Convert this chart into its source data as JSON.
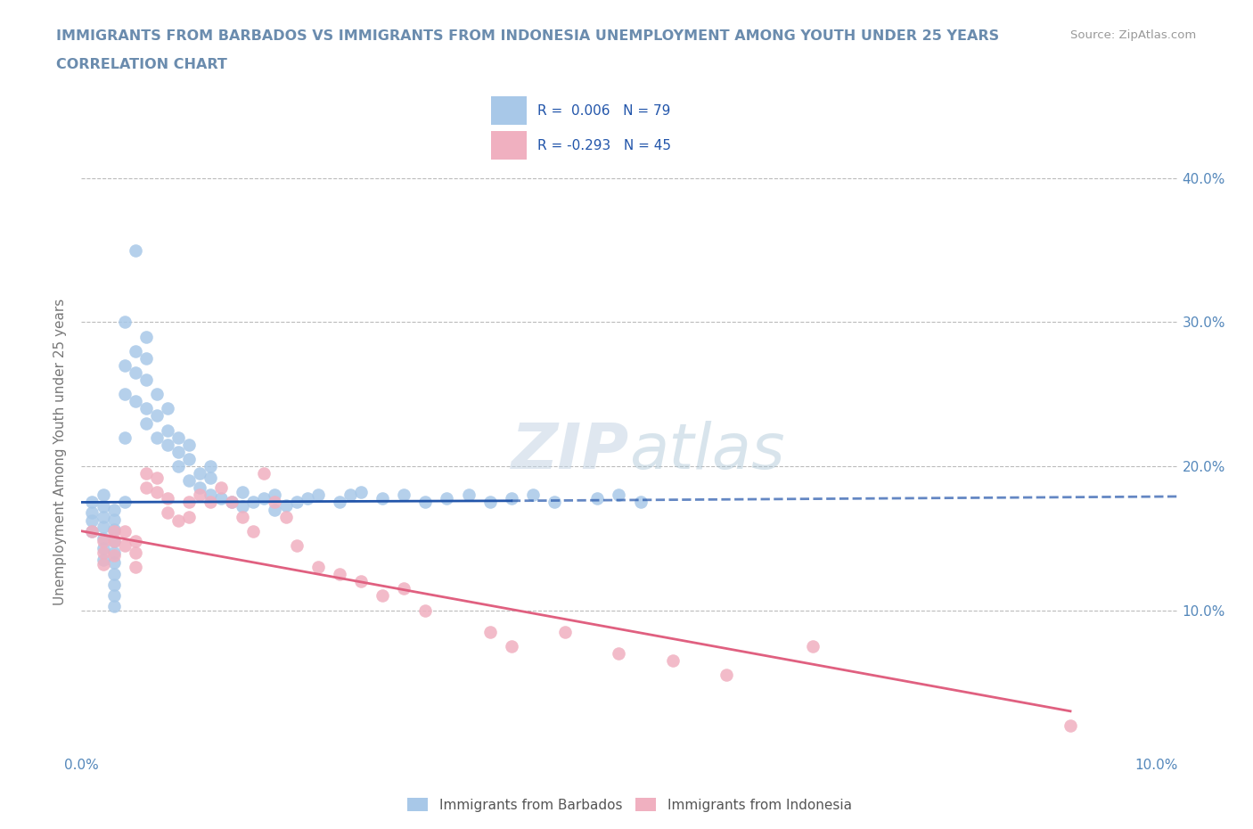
{
  "title_line1": "IMMIGRANTS FROM BARBADOS VS IMMIGRANTS FROM INDONESIA UNEMPLOYMENT AMONG YOUTH UNDER 25 YEARS",
  "title_line2": "CORRELATION CHART",
  "title_color": "#6b8cae",
  "source_text": "Source: ZipAtlas.com",
  "ylabel": "Unemployment Among Youth under 25 years",
  "xlim": [
    0.0,
    0.102
  ],
  "ylim": [
    0.0,
    0.42
  ],
  "grid_color": "#bbbbbb",
  "background_color": "#ffffff",
  "barbados_color": "#a8c8e8",
  "indonesia_color": "#f0b0c0",
  "trendline_barbados_color": "#2255aa",
  "trendline_indonesia_color": "#e06080",
  "legend_r_b": "R =  0.006",
  "legend_n_b": "N = 79",
  "legend_r_i": "R = -0.293",
  "legend_n_i": "N = 45",
  "legend_text_color": "#2255aa",
  "tick_color": "#5588bb",
  "barbados_x": [
    0.001,
    0.001,
    0.001,
    0.001,
    0.002,
    0.002,
    0.002,
    0.002,
    0.002,
    0.002,
    0.002,
    0.003,
    0.003,
    0.003,
    0.003,
    0.003,
    0.003,
    0.003,
    0.003,
    0.003,
    0.003,
    0.004,
    0.004,
    0.004,
    0.004,
    0.004,
    0.005,
    0.005,
    0.005,
    0.005,
    0.006,
    0.006,
    0.006,
    0.006,
    0.006,
    0.007,
    0.007,
    0.007,
    0.008,
    0.008,
    0.008,
    0.009,
    0.009,
    0.009,
    0.01,
    0.01,
    0.01,
    0.011,
    0.011,
    0.012,
    0.012,
    0.012,
    0.013,
    0.014,
    0.015,
    0.015,
    0.016,
    0.017,
    0.018,
    0.018,
    0.019,
    0.02,
    0.021,
    0.022,
    0.024,
    0.025,
    0.026,
    0.028,
    0.03,
    0.032,
    0.034,
    0.036,
    0.038,
    0.04,
    0.042,
    0.044,
    0.048,
    0.05,
    0.052
  ],
  "barbados_y": [
    0.175,
    0.168,
    0.162,
    0.155,
    0.18,
    0.172,
    0.165,
    0.158,
    0.15,
    0.143,
    0.135,
    0.17,
    0.163,
    0.156,
    0.148,
    0.14,
    0.133,
    0.125,
    0.118,
    0.11,
    0.103,
    0.175,
    0.22,
    0.25,
    0.27,
    0.3,
    0.245,
    0.265,
    0.28,
    0.35,
    0.23,
    0.24,
    0.26,
    0.275,
    0.29,
    0.22,
    0.235,
    0.25,
    0.215,
    0.225,
    0.24,
    0.2,
    0.21,
    0.22,
    0.19,
    0.205,
    0.215,
    0.185,
    0.195,
    0.18,
    0.192,
    0.2,
    0.178,
    0.175,
    0.172,
    0.182,
    0.175,
    0.178,
    0.17,
    0.18,
    0.173,
    0.175,
    0.178,
    0.18,
    0.175,
    0.18,
    0.182,
    0.178,
    0.18,
    0.175,
    0.178,
    0.18,
    0.175,
    0.178,
    0.18,
    0.175,
    0.178,
    0.18,
    0.175
  ],
  "indonesia_x": [
    0.001,
    0.002,
    0.002,
    0.002,
    0.003,
    0.003,
    0.003,
    0.004,
    0.004,
    0.005,
    0.005,
    0.005,
    0.006,
    0.006,
    0.007,
    0.007,
    0.008,
    0.008,
    0.009,
    0.01,
    0.01,
    0.011,
    0.012,
    0.013,
    0.014,
    0.015,
    0.016,
    0.017,
    0.018,
    0.019,
    0.02,
    0.022,
    0.024,
    0.026,
    0.028,
    0.03,
    0.032,
    0.038,
    0.04,
    0.045,
    0.05,
    0.055,
    0.06,
    0.068,
    0.092
  ],
  "indonesia_y": [
    0.155,
    0.148,
    0.14,
    0.132,
    0.155,
    0.148,
    0.138,
    0.155,
    0.145,
    0.148,
    0.14,
    0.13,
    0.195,
    0.185,
    0.192,
    0.182,
    0.178,
    0.168,
    0.162,
    0.175,
    0.165,
    0.18,
    0.175,
    0.185,
    0.175,
    0.165,
    0.155,
    0.195,
    0.175,
    0.165,
    0.145,
    0.13,
    0.125,
    0.12,
    0.11,
    0.115,
    0.1,
    0.085,
    0.075,
    0.085,
    0.07,
    0.065,
    0.055,
    0.075,
    0.02
  ],
  "trendline_b_x0": 0.0,
  "trendline_b_x_solid": 0.04,
  "trendline_b_x1": 0.102,
  "trendline_b_y0": 0.175,
  "trendline_b_y_solid": 0.176,
  "trendline_b_y1": 0.179,
  "trendline_i_x0": 0.0,
  "trendline_i_x1": 0.092,
  "trendline_i_y0": 0.155,
  "trendline_i_y1": 0.03
}
